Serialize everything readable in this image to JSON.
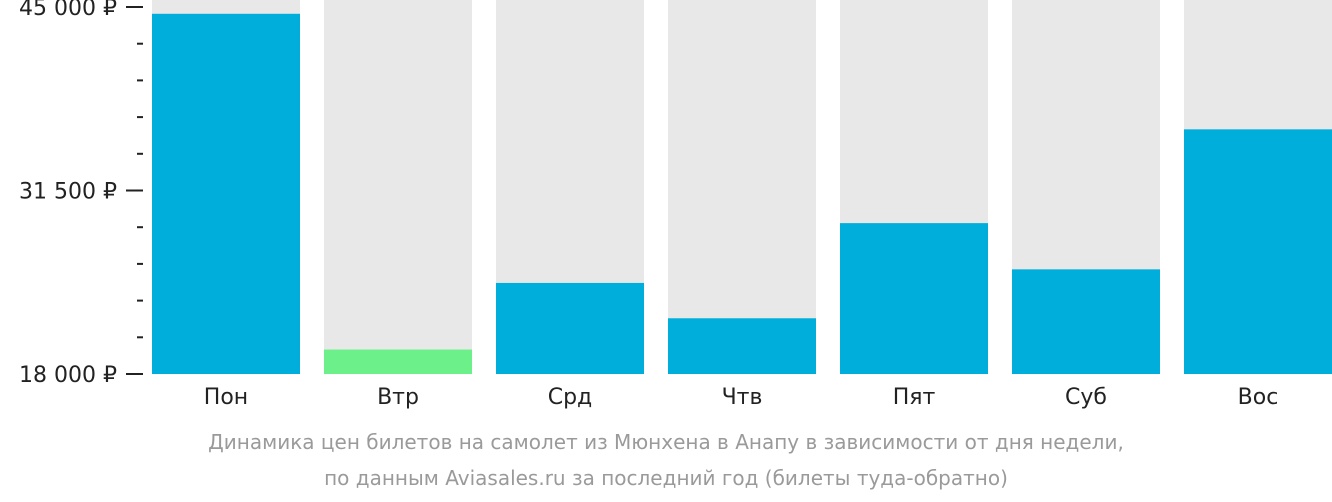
{
  "chart_data": {
    "type": "bar",
    "categories": [
      "Пон",
      "Втр",
      "Срд",
      "Чтв",
      "Пят",
      "Суб",
      "Вос"
    ],
    "values": [
      44500,
      19800,
      24700,
      22100,
      29100,
      25700,
      36000
    ],
    "highlight_index": 1,
    "ylim": [
      18000,
      45000
    ],
    "yticks": [
      {
        "value": 45000,
        "label": "45 000 ₽"
      },
      {
        "value": 31500,
        "label": "31 500 ₽"
      },
      {
        "value": 18000,
        "label": "18 000 ₽"
      }
    ],
    "minor_tick_step": 2700,
    "grid": false,
    "legend": "none",
    "colors": {
      "bar": "#00aedb",
      "bar_highlight": "#6cf08a",
      "bar_track": "#e8e8e8",
      "axis": "#222222"
    }
  },
  "caption": {
    "line1": "Динамика цен билетов на самолет из Мюнхена в Анапу в зависимости от дня недели,",
    "line2": "по данным Aviasales.ru за последний год (билеты туда-обратно)"
  }
}
